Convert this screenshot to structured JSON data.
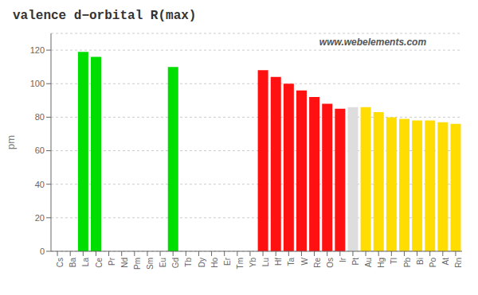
{
  "chart_data": {
    "type": "bar",
    "title": "valence d−orbital R(max)",
    "y_label": "pm",
    "annotations": [
      "www.webelements.com"
    ],
    "categories": [
      "Cs",
      "Ba",
      "La",
      "Ce",
      "Pr",
      "Nd",
      "Pm",
      "Sm",
      "Eu",
      "Gd",
      "Tb",
      "Dy",
      "Ho",
      "Er",
      "Tm",
      "Yb",
      "Lu",
      "Hf",
      "Ta",
      "W",
      "Re",
      "Os",
      "Ir",
      "Pt",
      "Au",
      "Hg",
      "Tl",
      "Pb",
      "Bi",
      "Po",
      "At",
      "Rn"
    ],
    "values": [
      0,
      0,
      119,
      116,
      0,
      0,
      0,
      0,
      0,
      110,
      0,
      0,
      0,
      0,
      0,
      0,
      108,
      104,
      100,
      96,
      92,
      88,
      85,
      86,
      86,
      83,
      80,
      79,
      78,
      78,
      77,
      76
    ],
    "colors": [
      "#555555",
      "#555555",
      "#00dd00",
      "#00dd00",
      "#009900",
      "#009900",
      "#009900",
      "#009900",
      "#009900",
      "#00dd00",
      "#009900",
      "#009900",
      "#009900",
      "#009900",
      "#009900",
      "#009900",
      "#ff1111",
      "#ff1111",
      "#ff1111",
      "#ff1111",
      "#ff1111",
      "#ff1111",
      "#ff1111",
      "#dddddd",
      "#ffdd00",
      "#ffdd00",
      "#ffdd00",
      "#ffdd00",
      "#ffdd00",
      "#ffdd00",
      "#ffdd00",
      "#ffdd00"
    ],
    "ylim": [
      0,
      130
    ],
    "yticks": [
      0,
      20,
      40,
      60,
      80,
      100,
      120
    ],
    "grid": true
  }
}
